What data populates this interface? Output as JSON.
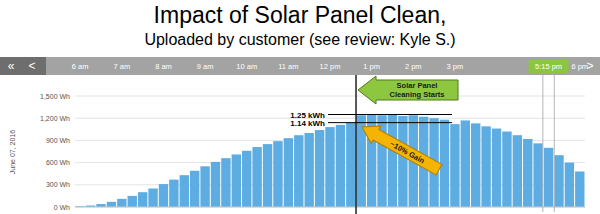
{
  "chart_data": {
    "type": "bar",
    "title": "Impact of Solar Panel Clean,",
    "subtitle": "Uploaded by customer (see review: Kyle S.)",
    "date_label": "June 07, 2016",
    "navigation": [
      "«",
      "<",
      ">"
    ],
    "x": [
      6,
      6.25,
      6.5,
      6.75,
      7,
      7.25,
      7.5,
      7.75,
      8,
      8.25,
      8.5,
      8.75,
      9,
      9.25,
      9.5,
      9.75,
      10,
      10.25,
      10.5,
      10.75,
      11,
      11.25,
      11.5,
      11.75,
      12,
      12.25,
      12.5,
      12.75,
      13,
      13.25,
      13.5,
      13.75,
      14,
      14.25,
      14.5,
      14.75,
      15,
      15.25,
      15.5,
      15.75,
      16,
      16.25,
      16.5,
      16.75,
      17,
      17.25,
      17.5,
      17.75,
      18
    ],
    "values": [
      10,
      20,
      40,
      70,
      110,
      150,
      200,
      250,
      310,
      370,
      430,
      490,
      550,
      610,
      660,
      710,
      760,
      810,
      850,
      890,
      930,
      970,
      1000,
      1040,
      1080,
      1110,
      1140,
      1240,
      1250,
      1240,
      1250,
      1230,
      1240,
      1220,
      1200,
      1180,
      1120,
      1170,
      1130,
      1090,
      1060,
      1020,
      970,
      920,
      860,
      800,
      700,
      600,
      480
    ],
    "color": "#5dade2",
    "xlim": [
      5.875,
      18.125
    ],
    "xticks": [
      {
        "value": 6,
        "label": "6 am"
      },
      {
        "value": 7,
        "label": "7 am"
      },
      {
        "value": 8,
        "label": "8 am"
      },
      {
        "value": 9,
        "label": "9 am"
      },
      {
        "value": 10,
        "label": "10 am"
      },
      {
        "value": 11,
        "label": "11 am"
      },
      {
        "value": 12,
        "label": "12 pm"
      },
      {
        "value": 13,
        "label": "1 pm"
      },
      {
        "value": 14,
        "label": "2 pm"
      },
      {
        "value": 15,
        "label": "3 pm"
      },
      {
        "value": 18,
        "label": "6 pm"
      }
    ],
    "ylim": [
      0,
      1500
    ],
    "yticks": [
      {
        "value": 0,
        "label": "0 Wh"
      },
      {
        "value": 300,
        "label": "300 Wh"
      },
      {
        "value": 600,
        "label": "600 Wh"
      },
      {
        "value": 900,
        "label": "900 Wh"
      },
      {
        "value": 1200,
        "label": "1,200 Wh"
      },
      {
        "value": 1500,
        "label": "1,500 Wh"
      }
    ],
    "grid": true,
    "annotations": [
      {
        "type": "vline",
        "x": 12.625,
        "text": "Solar Panel Cleaning Starts"
      },
      {
        "type": "hline",
        "y": 1250,
        "label": "1.25 kWh"
      },
      {
        "type": "hline",
        "y": 1140,
        "label": "1.14 kWh"
      },
      {
        "type": "arrow",
        "text": "~10% Gain"
      },
      {
        "type": "highlight",
        "x": 17.25,
        "label": "5:15 pm"
      }
    ]
  }
}
